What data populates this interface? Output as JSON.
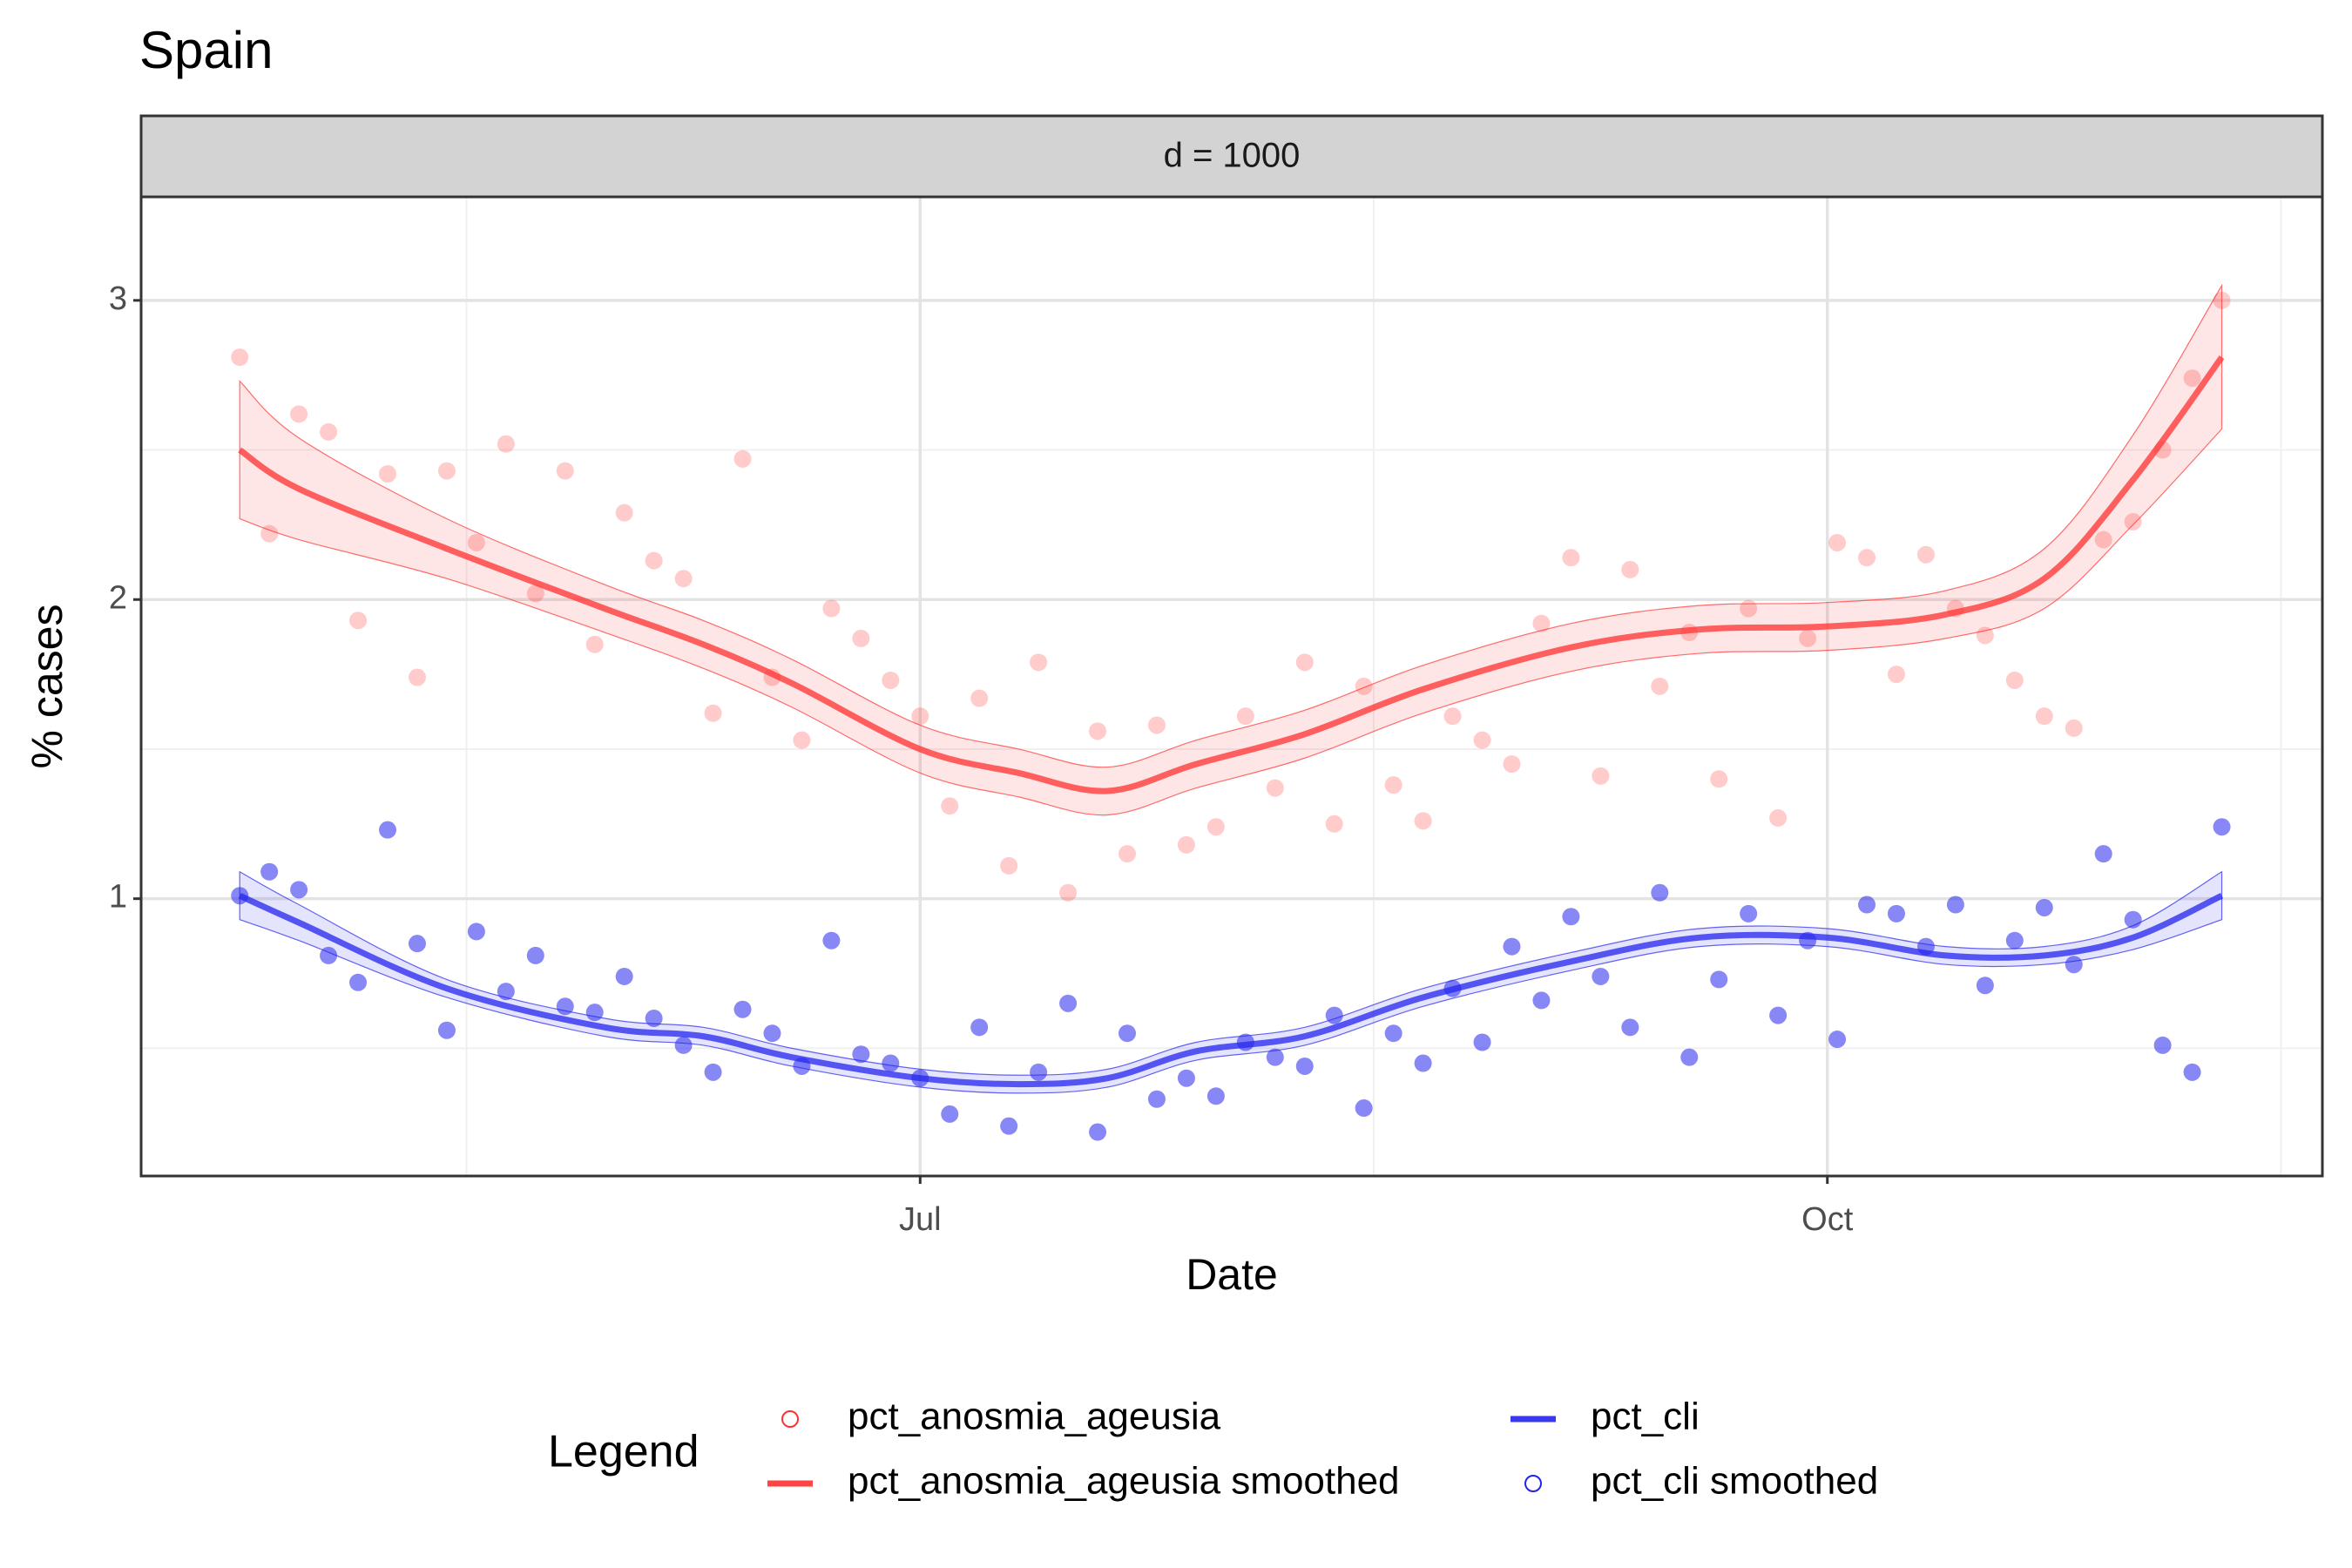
{
  "chart_data": {
    "type": "scatter",
    "title": "Spain",
    "facet_label": "d = 1000",
    "x_label": "Date",
    "y_label": "% cases",
    "legend_title": "Legend",
    "xlim": [
      -79,
      142.2
    ],
    "xticks": [
      {
        "value": 0,
        "label": "Jul"
      },
      {
        "value": 92,
        "label": "Oct"
      }
    ],
    "ylim": [
      0.073,
      3.346
    ],
    "yticks": [
      1,
      2,
      3
    ],
    "grid": true,
    "series": [
      {
        "name": "pct_anosmia_ageusia",
        "mark": "point",
        "color": "#ff3030",
        "x": [
          -69,
          -66,
          -63,
          -60,
          -57,
          -54,
          -51,
          -48,
          -45,
          -42,
          -39,
          -36,
          -33,
          -30,
          -27,
          -24,
          -21,
          -18,
          -15,
          -12,
          -9,
          -6,
          -3,
          0,
          3,
          6,
          9,
          12,
          15,
          18,
          21,
          24,
          27,
          30,
          33,
          36,
          39,
          42,
          45,
          48,
          51,
          54,
          57,
          60,
          63,
          66,
          69,
          72,
          75,
          78,
          81,
          84,
          87,
          90,
          93,
          96,
          99,
          102,
          105,
          108,
          111,
          114,
          117,
          120,
          123,
          126,
          129,
          132
        ],
        "values": [
          2.81,
          2.22,
          2.62,
          2.56,
          1.93,
          2.42,
          1.74,
          2.43,
          2.19,
          2.52,
          2.02,
          2.43,
          1.85,
          2.29,
          2.13,
          2.07,
          1.62,
          2.47,
          1.74,
          1.53,
          1.97,
          1.87,
          1.73,
          1.61,
          1.31,
          1.67,
          1.11,
          1.79,
          1.02,
          1.56,
          1.15,
          1.58,
          1.18,
          1.24,
          1.61,
          1.37,
          1.79,
          1.25,
          1.71,
          1.38,
          1.26,
          1.61,
          1.53,
          1.45,
          1.92,
          2.14,
          1.41,
          2.1,
          1.71,
          1.89,
          1.4,
          1.97,
          1.27,
          1.87,
          2.19,
          2.14,
          1.75,
          2.15,
          1.97,
          1.88,
          1.73,
          1.61,
          1.57,
          2.2,
          2.26,
          2.5,
          2.74,
          3.0
        ]
      },
      {
        "name": "pct_anosmia_ageusia smoothed",
        "mark": "line",
        "color": "#ff3030",
        "x": [
          -69,
          -63,
          -48,
          -32,
          -22,
          -13,
          0,
          10,
          19,
          28,
          39,
          51,
          66,
          79,
          92,
          104,
          114,
          123,
          132
        ],
        "values": [
          2.5,
          2.37,
          2.17,
          1.97,
          1.85,
          1.72,
          1.5,
          1.42,
          1.36,
          1.45,
          1.55,
          1.7,
          1.84,
          1.9,
          1.91,
          1.95,
          2.07,
          2.4,
          2.81
        ],
        "lower": [
          2.27,
          2.2,
          2.07,
          1.89,
          1.77,
          1.64,
          1.42,
          1.34,
          1.28,
          1.37,
          1.47,
          1.62,
          1.76,
          1.82,
          1.83,
          1.87,
          1.97,
          2.25,
          2.57
        ],
        "upper": [
          2.73,
          2.54,
          2.27,
          2.05,
          1.93,
          1.8,
          1.58,
          1.5,
          1.44,
          1.53,
          1.63,
          1.78,
          1.92,
          1.98,
          1.99,
          2.03,
          2.17,
          2.55,
          3.05
        ]
      },
      {
        "name": "pct_cli",
        "mark": "line",
        "color": "#2424ee",
        "x": [
          -69,
          -63,
          -48,
          -32,
          -22,
          -13,
          0,
          10,
          19,
          28,
          39,
          51,
          66,
          79,
          92,
          104,
          114,
          123,
          132
        ],
        "values": [
          1.01,
          0.92,
          0.7,
          0.57,
          0.54,
          0.47,
          0.4,
          0.38,
          0.4,
          0.49,
          0.54,
          0.67,
          0.79,
          0.87,
          0.87,
          0.81,
          0.81,
          0.87,
          1.01
        ],
        "lower": [
          0.93,
          0.86,
          0.67,
          0.54,
          0.51,
          0.44,
          0.37,
          0.35,
          0.37,
          0.46,
          0.51,
          0.64,
          0.76,
          0.84,
          0.84,
          0.78,
          0.78,
          0.83,
          0.93
        ],
        "upper": [
          1.09,
          0.98,
          0.73,
          0.6,
          0.57,
          0.5,
          0.43,
          0.41,
          0.43,
          0.52,
          0.57,
          0.7,
          0.82,
          0.9,
          0.9,
          0.84,
          0.84,
          0.91,
          1.09
        ]
      },
      {
        "name": "pct_cli smoothed",
        "mark": "point",
        "color": "#2424ee",
        "x": [
          -69,
          -66,
          -63,
          -60,
          -57,
          -54,
          -51,
          -48,
          -45,
          -42,
          -39,
          -36,
          -33,
          -30,
          -27,
          -24,
          -21,
          -18,
          -15,
          -12,
          -9,
          -6,
          -3,
          0,
          3,
          6,
          9,
          12,
          15,
          18,
          21,
          24,
          27,
          30,
          33,
          36,
          39,
          42,
          45,
          48,
          51,
          54,
          57,
          60,
          63,
          66,
          69,
          72,
          75,
          78,
          81,
          84,
          87,
          90,
          93,
          96,
          99,
          102,
          105,
          108,
          111,
          114,
          117,
          120,
          123,
          126,
          129,
          132
        ],
        "values": [
          1.01,
          1.09,
          1.03,
          0.81,
          0.72,
          1.23,
          0.85,
          0.56,
          0.89,
          0.69,
          0.81,
          0.64,
          0.62,
          0.74,
          0.6,
          0.51,
          0.42,
          0.63,
          0.55,
          0.44,
          0.86,
          0.48,
          0.45,
          0.4,
          0.28,
          0.57,
          0.24,
          0.42,
          0.65,
          0.22,
          0.55,
          0.33,
          0.4,
          0.34,
          0.52,
          0.47,
          0.44,
          0.61,
          0.3,
          0.55,
          0.45,
          0.7,
          0.52,
          0.84,
          0.66,
          0.94,
          0.74,
          0.57,
          1.02,
          0.47,
          0.73,
          0.95,
          0.61,
          0.86,
          0.53,
          0.98,
          0.95,
          0.84,
          0.98,
          0.71,
          0.86,
          0.97,
          0.78,
          1.15,
          0.93,
          0.51,
          0.42,
          1.24
        ]
      }
    ]
  }
}
